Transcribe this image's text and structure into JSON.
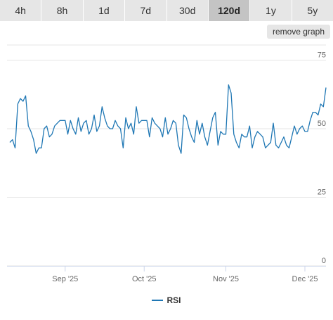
{
  "ranges": {
    "tabs": [
      {
        "label": "4h"
      },
      {
        "label": "8h"
      },
      {
        "label": "1d"
      },
      {
        "label": "7d"
      },
      {
        "label": "30d"
      },
      {
        "label": "120d"
      },
      {
        "label": "1y"
      },
      {
        "label": "5y"
      }
    ],
    "active": "120d"
  },
  "remove_graph_label": "remove graph",
  "colors": {
    "line": "#1f77b4",
    "grid": "#e6e6e6",
    "tab_bg": "#e6e6e6",
    "tab_active_bg": "#c4c4c4"
  },
  "chart_data": {
    "type": "line",
    "title": "",
    "xlabel": "",
    "ylabel": "",
    "ylim": [
      0,
      80
    ],
    "y_ticks": [
      "0",
      "25",
      "50",
      "75"
    ],
    "x_tick_labels": [
      "Sep '25",
      "Oct '25",
      "Nov '25",
      "Dec '25"
    ],
    "x_ticks": [
      "2025-09-01",
      "2025-10-01",
      "2025-11-01",
      "2025-12-01"
    ],
    "x_range": [
      "2025-08-11",
      "2025-12-09"
    ],
    "legend_position": "bottom-center",
    "series": [
      {
        "name": "RSI",
        "x": [
          "2025-08-11",
          "2025-08-12",
          "2025-08-13",
          "2025-08-14",
          "2025-08-15",
          "2025-08-16",
          "2025-08-17",
          "2025-08-18",
          "2025-08-19",
          "2025-08-20",
          "2025-08-21",
          "2025-08-22",
          "2025-08-23",
          "2025-08-24",
          "2025-08-25",
          "2025-08-26",
          "2025-08-27",
          "2025-08-28",
          "2025-08-29",
          "2025-08-30",
          "2025-08-31",
          "2025-09-01",
          "2025-09-02",
          "2025-09-03",
          "2025-09-04",
          "2025-09-05",
          "2025-09-06",
          "2025-09-07",
          "2025-09-08",
          "2025-09-09",
          "2025-09-10",
          "2025-09-11",
          "2025-09-12",
          "2025-09-13",
          "2025-09-14",
          "2025-09-15",
          "2025-09-16",
          "2025-09-17",
          "2025-09-18",
          "2025-09-19",
          "2025-09-20",
          "2025-09-21",
          "2025-09-22",
          "2025-09-23",
          "2025-09-24",
          "2025-09-25",
          "2025-09-26",
          "2025-09-27",
          "2025-09-28",
          "2025-09-29",
          "2025-09-30",
          "2025-10-01",
          "2025-10-02",
          "2025-10-03",
          "2025-10-04",
          "2025-10-05",
          "2025-10-06",
          "2025-10-07",
          "2025-10-08",
          "2025-10-09",
          "2025-10-10",
          "2025-10-11",
          "2025-10-12",
          "2025-10-13",
          "2025-10-14",
          "2025-10-15",
          "2025-10-16",
          "2025-10-17",
          "2025-10-18",
          "2025-10-19",
          "2025-10-20",
          "2025-10-21",
          "2025-10-22",
          "2025-10-23",
          "2025-10-24",
          "2025-10-25",
          "2025-10-26",
          "2025-10-27",
          "2025-10-28",
          "2025-10-29",
          "2025-10-30",
          "2025-10-31",
          "2025-11-01",
          "2025-11-02",
          "2025-11-03",
          "2025-11-04",
          "2025-11-05",
          "2025-11-06",
          "2025-11-07",
          "2025-11-08",
          "2025-11-09",
          "2025-11-10",
          "2025-11-11",
          "2025-11-12",
          "2025-11-13",
          "2025-11-14",
          "2025-11-15",
          "2025-11-16",
          "2025-11-17",
          "2025-11-18",
          "2025-11-19",
          "2025-11-20",
          "2025-11-21",
          "2025-11-22",
          "2025-11-23",
          "2025-11-24",
          "2025-11-25",
          "2025-11-26",
          "2025-11-27",
          "2025-11-28",
          "2025-11-29",
          "2025-11-30",
          "2025-12-01",
          "2025-12-02",
          "2025-12-03",
          "2025-12-04",
          "2025-12-05",
          "2025-12-06",
          "2025-12-07",
          "2025-12-08",
          "2025-12-09"
        ],
        "values": [
          45,
          46,
          43,
          59,
          61,
          60,
          62,
          51,
          49,
          46,
          41,
          43,
          43,
          50,
          51,
          47,
          48,
          51,
          52,
          53,
          53,
          53,
          48,
          53,
          50,
          48,
          54,
          49,
          52,
          53,
          48,
          50,
          55,
          49,
          51,
          58,
          54,
          51,
          50,
          50,
          53,
          51,
          50,
          43,
          54,
          50,
          52,
          48,
          58,
          52,
          53,
          53,
          53,
          47,
          54,
          52,
          51,
          50,
          47,
          54,
          48,
          50,
          53,
          52,
          44,
          41,
          55,
          54,
          50,
          47,
          45,
          53,
          48,
          52,
          47,
          44,
          49,
          54,
          56,
          44,
          49,
          48,
          48,
          66,
          63,
          48,
          45,
          43,
          48,
          47,
          47,
          51,
          43,
          47,
          49,
          48,
          47,
          43,
          44,
          45,
          52,
          44,
          43,
          45,
          47,
          44,
          43,
          47,
          51,
          48,
          50,
          51,
          49,
          49,
          53,
          56,
          56,
          55,
          59,
          58,
          65
        ]
      }
    ]
  }
}
